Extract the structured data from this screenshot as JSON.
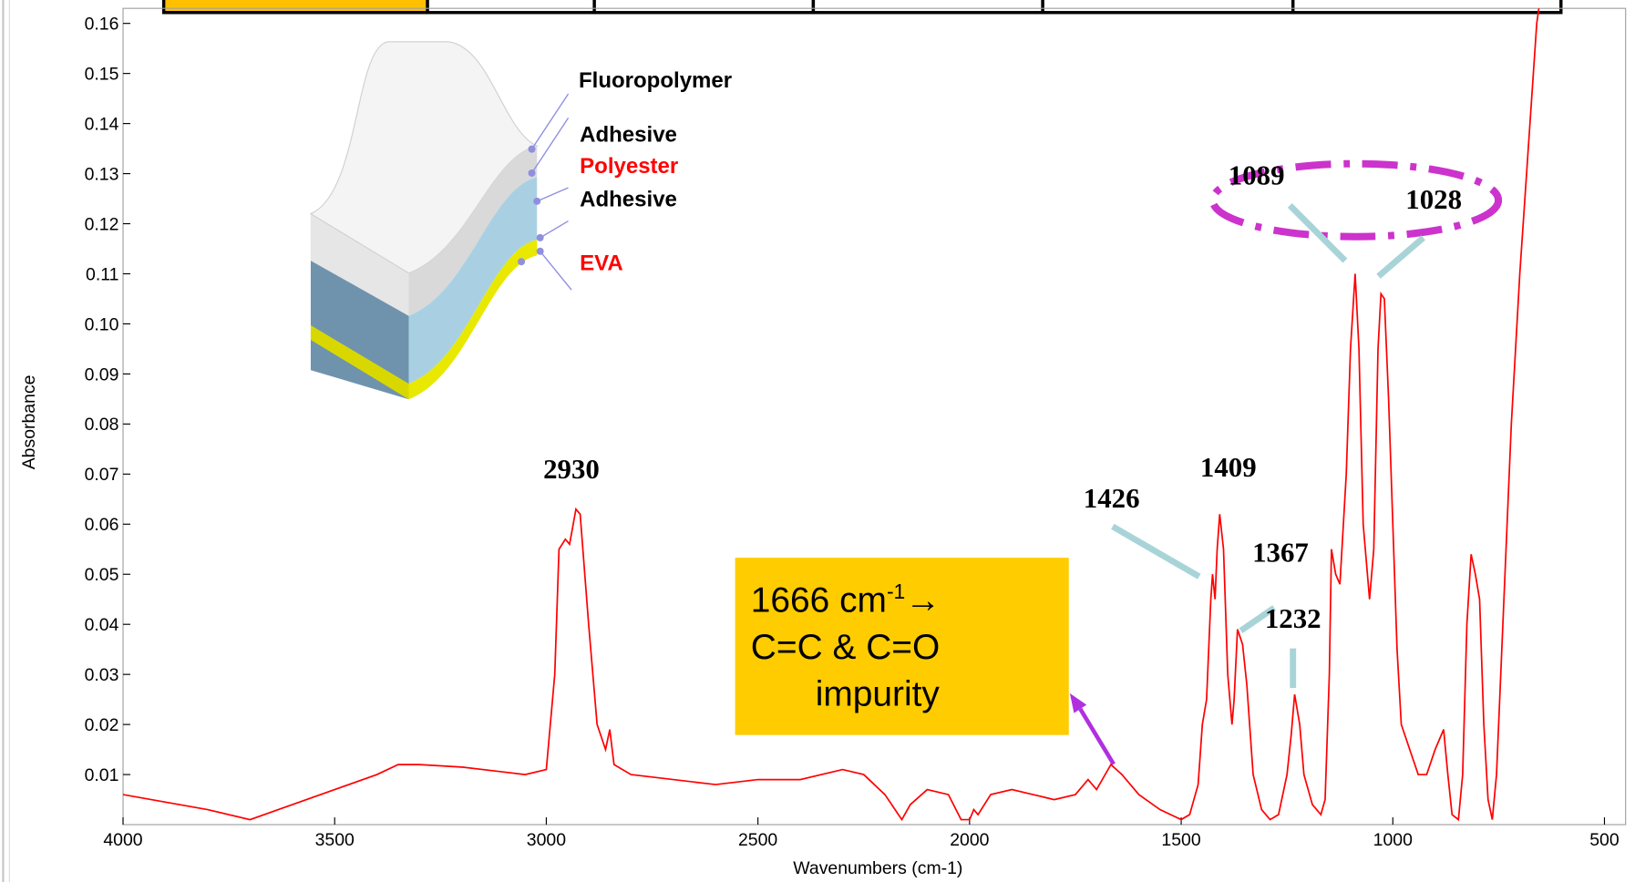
{
  "chart_data": {
    "type": "line",
    "x_label": "Wavenumbers (cm-1)",
    "y_label": "Absorbance",
    "color": "#ff0000",
    "xlim": [
      4000,
      450
    ],
    "ylim": [
      0,
      0.163
    ],
    "xticks": [
      4000,
      3500,
      3000,
      2500,
      2000,
      1500,
      1000,
      500
    ],
    "yticks": [
      0.01,
      0.02,
      0.03,
      0.04,
      0.05,
      0.06,
      0.07,
      0.08,
      0.09,
      {
        "value": 0.1,
        "label": "0.10"
      },
      0.11,
      0.12,
      0.13,
      0.14,
      0.15,
      0.16
    ],
    "x": [
      4000,
      3900,
      3800,
      3700,
      3600,
      3500,
      3400,
      3350,
      3300,
      3200,
      3100,
      3050,
      3000,
      2980,
      2970,
      2955,
      2945,
      2930,
      2920,
      2900,
      2880,
      2860,
      2850,
      2840,
      2800,
      2700,
      2600,
      2500,
      2400,
      2300,
      2250,
      2200,
      2160,
      2140,
      2100,
      2050,
      2020,
      2000,
      1990,
      1980,
      1950,
      1900,
      1850,
      1800,
      1750,
      1720,
      1700,
      1666,
      1640,
      1600,
      1550,
      1500,
      1480,
      1460,
      1450,
      1440,
      1430,
      1426,
      1420,
      1415,
      1409,
      1400,
      1390,
      1380,
      1375,
      1367,
      1355,
      1345,
      1330,
      1310,
      1290,
      1270,
      1250,
      1240,
      1232,
      1220,
      1210,
      1190,
      1170,
      1160,
      1150,
      1145,
      1135,
      1125,
      1110,
      1100,
      1089,
      1080,
      1070,
      1055,
      1045,
      1035,
      1028,
      1020,
      1010,
      1000,
      990,
      980,
      960,
      940,
      920,
      900,
      880,
      870,
      860,
      845,
      835,
      825,
      815,
      805,
      795,
      785,
      775,
      765,
      755,
      740,
      720,
      700,
      680,
      660,
      655
    ],
    "values": [
      0.006,
      0.0045,
      0.003,
      0.001,
      0.004,
      0.007,
      0.01,
      0.012,
      0.012,
      0.0115,
      0.0105,
      0.01,
      0.011,
      0.03,
      0.055,
      0.057,
      0.056,
      0.063,
      0.062,
      0.04,
      0.02,
      0.015,
      0.019,
      0.012,
      0.01,
      0.009,
      0.008,
      0.009,
      0.009,
      0.011,
      0.01,
      0.006,
      0.001,
      0.004,
      0.007,
      0.006,
      0.001,
      0.001,
      0.003,
      0.002,
      0.006,
      0.007,
      0.006,
      0.005,
      0.006,
      0.009,
      0.007,
      0.012,
      0.01,
      0.006,
      0.003,
      0.001,
      0.002,
      0.008,
      0.02,
      0.025,
      0.045,
      0.05,
      0.045,
      0.055,
      0.062,
      0.055,
      0.03,
      0.02,
      0.025,
      0.039,
      0.036,
      0.028,
      0.01,
      0.003,
      0.001,
      0.002,
      0.01,
      0.018,
      0.026,
      0.02,
      0.01,
      0.004,
      0.002,
      0.005,
      0.03,
      0.055,
      0.05,
      0.048,
      0.07,
      0.095,
      0.11,
      0.095,
      0.06,
      0.045,
      0.055,
      0.095,
      0.106,
      0.105,
      0.085,
      0.06,
      0.035,
      0.02,
      0.015,
      0.01,
      0.01,
      0.015,
      0.019,
      0.01,
      0.002,
      0.001,
      0.01,
      0.04,
      0.054,
      0.05,
      0.045,
      0.02,
      0.005,
      0.001,
      0.01,
      0.04,
      0.08,
      0.11,
      0.135,
      0.16,
      0.163
    ],
    "annotations": {
      "peaks": [
        "2930",
        "1089",
        "1028",
        "1426",
        "1409",
        "1367",
        "1232"
      ],
      "callout": [
        "1666 cm",
        "-1",
        "→",
        "C=C & C=O",
        "impurity"
      ],
      "layers": [
        "Fluoropolymer",
        "Adhesive",
        "Polyester",
        "Adhesive",
        "EVA"
      ]
    }
  }
}
